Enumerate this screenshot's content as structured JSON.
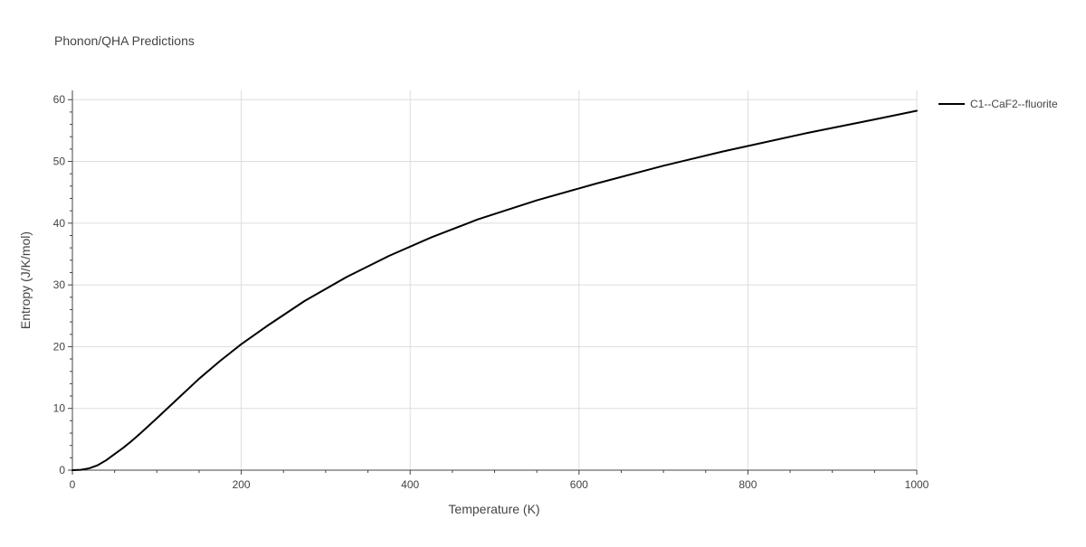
{
  "chart_data": {
    "type": "line",
    "title": "Phonon/QHA Predictions",
    "xlabel": "Temperature (K)",
    "ylabel": "Entropy (J/K/mol)",
    "xlim": [
      0,
      1000
    ],
    "ylim": [
      0,
      61.5
    ],
    "x_ticks": [
      0,
      200,
      400,
      600,
      800,
      1000
    ],
    "y_ticks": [
      0,
      10,
      20,
      30,
      40,
      50,
      60
    ],
    "grid": true,
    "legend_position": "top-right outside",
    "series": [
      {
        "name": "C1--CaF2--fluorite",
        "color": "#000000",
        "x": [
          0,
          10,
          20,
          30,
          40,
          50,
          60,
          70,
          80,
          100,
          125,
          150,
          175,
          200,
          230,
          275,
          325,
          375,
          425,
          480,
          550,
          620,
          700,
          770,
          870,
          950,
          1000
        ],
        "y": [
          0,
          0.05,
          0.3,
          0.8,
          1.6,
          2.6,
          3.6,
          4.7,
          5.9,
          8.4,
          11.6,
          14.8,
          17.7,
          20.4,
          23.3,
          27.4,
          31.3,
          34.7,
          37.7,
          40.6,
          43.7,
          46.4,
          49.3,
          51.6,
          54.6,
          56.8,
          58.2
        ]
      }
    ]
  }
}
